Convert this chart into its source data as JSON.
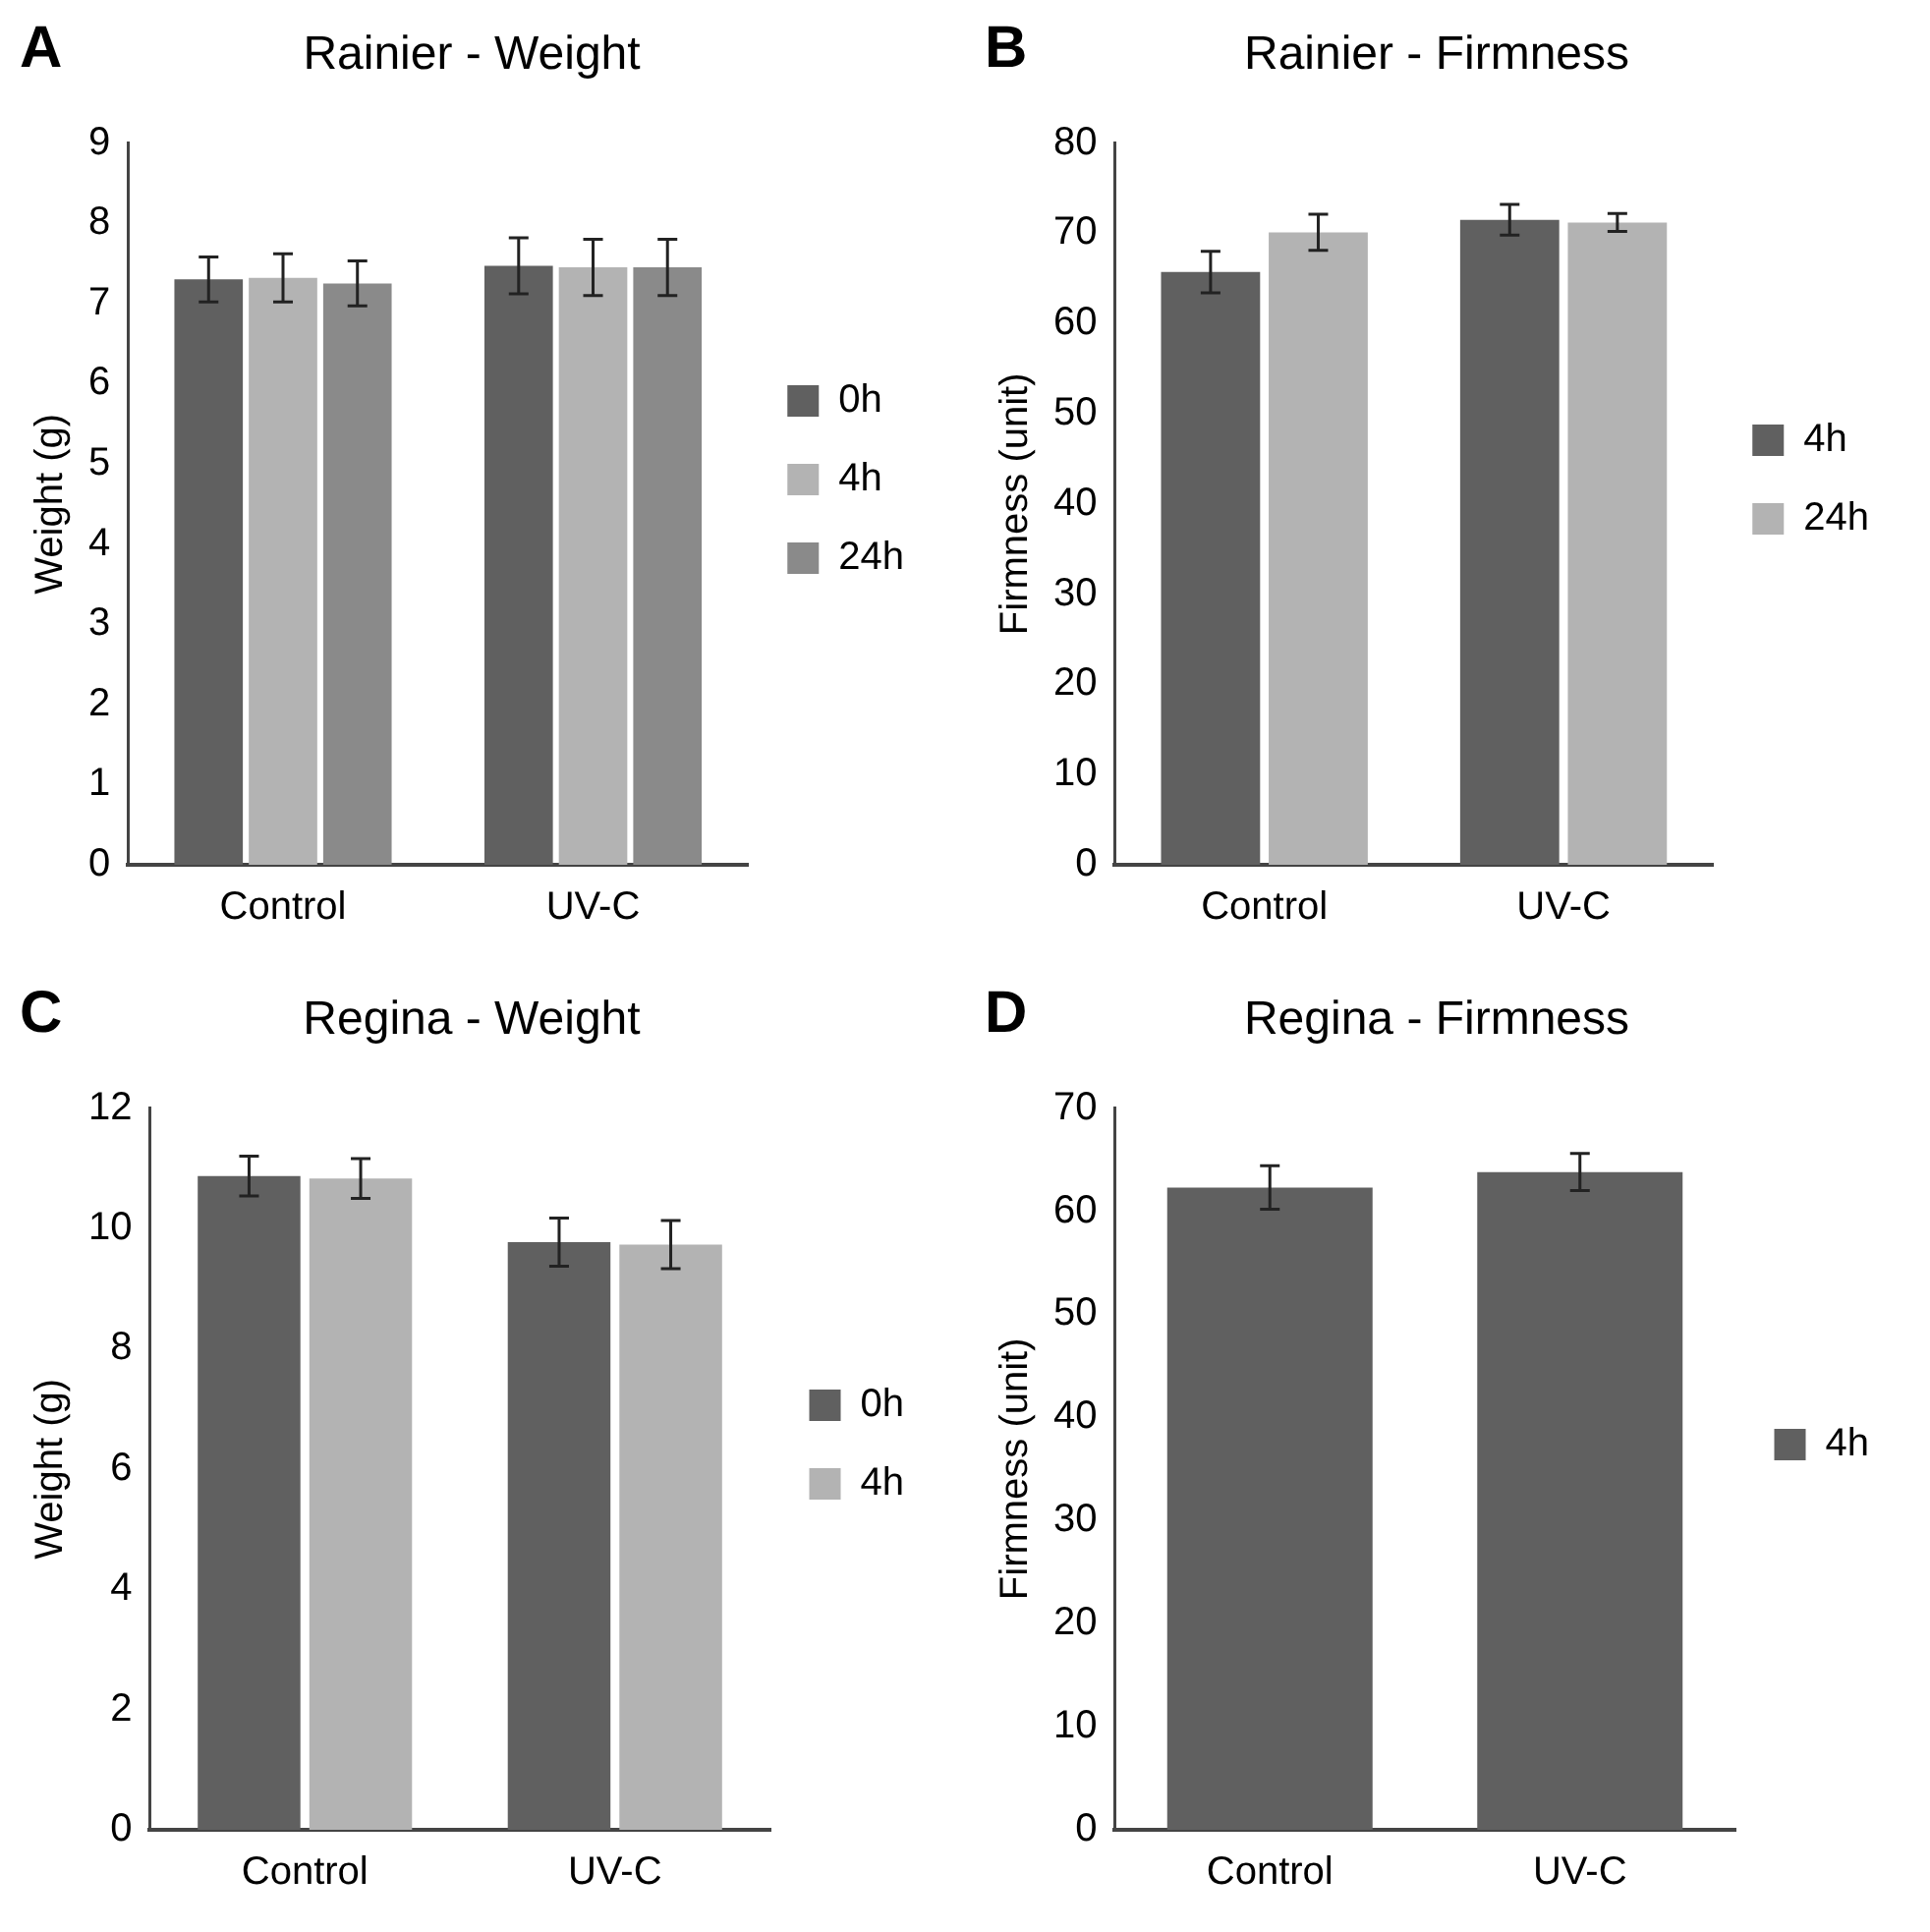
{
  "chart_data": [
    {
      "type": "bar",
      "title": "Rainier - Weight",
      "ylabel": "Weight (g)",
      "annotations": [
        "A"
      ],
      "categories": [
        "Control",
        "UV-C"
      ],
      "series": [
        {
          "name": "0h",
          "color": "#606060",
          "values": [
            7.3,
            7.47
          ],
          "errors": [
            0.28,
            0.35
          ]
        },
        {
          "name": "4h",
          "color": "#b3b3b3",
          "values": [
            7.32,
            7.45
          ],
          "errors": [
            0.3,
            0.35
          ]
        },
        {
          "name": "24h",
          "color": "#8a8a8a",
          "values": [
            7.25,
            7.45
          ],
          "errors": [
            0.28,
            0.35
          ]
        }
      ],
      "ylim": [
        0,
        9
      ],
      "yticks": [
        0,
        1,
        2,
        3,
        4,
        5,
        6,
        7,
        8,
        9
      ],
      "grid": false,
      "legend": "right"
    },
    {
      "type": "bar",
      "title": "Rainier - Firmness",
      "ylabel": "Firmness (unit)",
      "annotations": [
        "B"
      ],
      "categories": [
        "Control",
        "UV-C"
      ],
      "series": [
        {
          "name": "4h",
          "color": "#606060",
          "values": [
            65.7,
            71.5
          ],
          "errors": [
            2.3,
            1.7
          ]
        },
        {
          "name": "24h",
          "color": "#b3b3b3",
          "values": [
            70.1,
            71.2
          ],
          "errors": [
            2,
            1
          ]
        }
      ],
      "ylim": [
        0,
        80
      ],
      "yticks": [
        0,
        10,
        20,
        30,
        40,
        50,
        60,
        70,
        80
      ],
      "grid": false,
      "legend": "right"
    },
    {
      "type": "bar",
      "title": "Regina - Weight",
      "ylabel": "Weight (g)",
      "annotations": [
        "C"
      ],
      "categories": [
        "Control",
        "UV-C"
      ],
      "series": [
        {
          "name": "0h",
          "color": "#606060",
          "values": [
            10.87,
            9.77
          ],
          "errors": [
            0.33,
            0.4
          ]
        },
        {
          "name": "4h",
          "color": "#b3b3b3",
          "values": [
            10.83,
            9.73
          ],
          "errors": [
            0.33,
            0.4
          ]
        }
      ],
      "ylim": [
        0,
        12
      ],
      "yticks": [
        0,
        2,
        4,
        6,
        8,
        10,
        12
      ],
      "grid": false,
      "legend": "right"
    },
    {
      "type": "bar",
      "title": "Regina - Firmness",
      "ylabel": "Firmness (unit)",
      "annotations": [
        "D"
      ],
      "categories": [
        "Control",
        "UV-C"
      ],
      "series": [
        {
          "name": "4h",
          "color": "#606060",
          "values": [
            62.3,
            63.8
          ],
          "errors": [
            2.1,
            1.8
          ]
        }
      ],
      "ylim": [
        0,
        70
      ],
      "yticks": [
        0,
        10,
        20,
        30,
        40,
        50,
        60,
        70
      ],
      "grid": false,
      "legend": "right"
    }
  ]
}
